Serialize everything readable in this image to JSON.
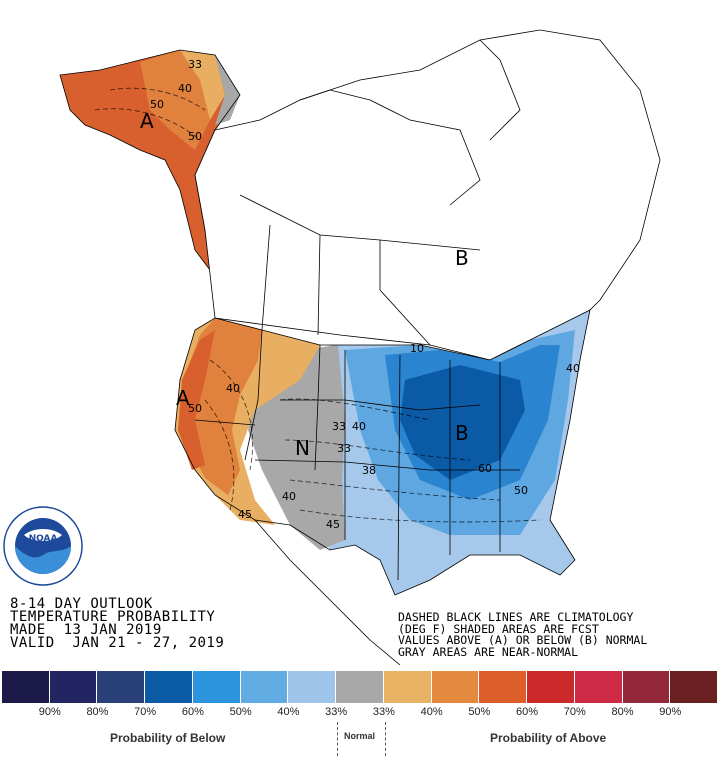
{
  "map": {
    "letters": {
      "alaska": "A",
      "west": "A",
      "center": "N",
      "east": "B",
      "canada": "B"
    },
    "contour_labels": [
      {
        "id": "ak33",
        "text": "33"
      },
      {
        "id": "ak40",
        "text": "40"
      },
      {
        "id": "ak50a",
        "text": "50"
      },
      {
        "id": "ak50b",
        "text": "50"
      },
      {
        "id": "w40",
        "text": "40"
      },
      {
        "id": "w50",
        "text": "50"
      },
      {
        "id": "w45",
        "text": "45"
      },
      {
        "id": "n33",
        "text": "33"
      },
      {
        "id": "n40a",
        "text": "40"
      },
      {
        "id": "n40b",
        "text": "40"
      },
      {
        "id": "n33b",
        "text": "33"
      },
      {
        "id": "n45",
        "text": "45"
      },
      {
        "id": "e38",
        "text": "38"
      },
      {
        "id": "e60",
        "text": "60"
      },
      {
        "id": "e50",
        "text": "50"
      },
      {
        "id": "e40",
        "text": "40"
      },
      {
        "id": "e10",
        "text": "10"
      }
    ],
    "colors": {
      "below_70": "#0a5aa6",
      "below_60": "#2b84d0",
      "below_50": "#5fa7e0",
      "below_40": "#a6c8ea",
      "near_normal": "#a8a8a8",
      "above_40": "#e8ae62",
      "above_50": "#e0823e",
      "above_60": "#d8602e",
      "land": "#ffffff"
    }
  },
  "info": {
    "line1": "8-14 DAY OUTLOOK",
    "line2": "TEMPERATURE PROBABILITY",
    "line3": "MADE  13 JAN 2019",
    "line4": "VALID  JAN 21 - 27, 2019"
  },
  "note": {
    "line1": "DASHED BLACK LINES ARE CLIMATOLOGY",
    "line2": "(DEG F) SHADED AREAS ARE FCST",
    "line3": "VALUES ABOVE (A) OR BELOW (B) NORMAL",
    "line4": "GRAY AREAS ARE NEAR-NORMAL"
  },
  "logo": {
    "text": "NOAA",
    "ring_text": "NATIONAL OCEANIC AND ATMOSPHERIC ADMINISTRATION",
    "ring_bottom": "U.S. DEPARTMENT OF COMMERCE"
  },
  "legend": {
    "swatches": [
      {
        "color": "#1b1a48"
      },
      {
        "color": "#222561"
      },
      {
        "color": "#2a4079"
      },
      {
        "color": "#0a5aa6"
      },
      {
        "color": "#2b94dc"
      },
      {
        "color": "#62ace4"
      },
      {
        "color": "#9fc4ea"
      },
      {
        "color": "#a8a8a8"
      },
      {
        "color": "#e8b265"
      },
      {
        "color": "#e48a3e"
      },
      {
        "color": "#dc5e2a"
      },
      {
        "color": "#cc2a2a"
      },
      {
        "color": "#cc2a45"
      },
      {
        "color": "#92283a"
      },
      {
        "color": "#6a2020"
      }
    ],
    "ticks": [
      "90%",
      "80%",
      "70%",
      "60%",
      "50%",
      "40%",
      "33%",
      "33%",
      "40%",
      "50%",
      "60%",
      "70%",
      "80%",
      "90%"
    ],
    "below_label": "Probability of Below",
    "normal_label": "Normal",
    "above_label": "Probability of Above"
  }
}
